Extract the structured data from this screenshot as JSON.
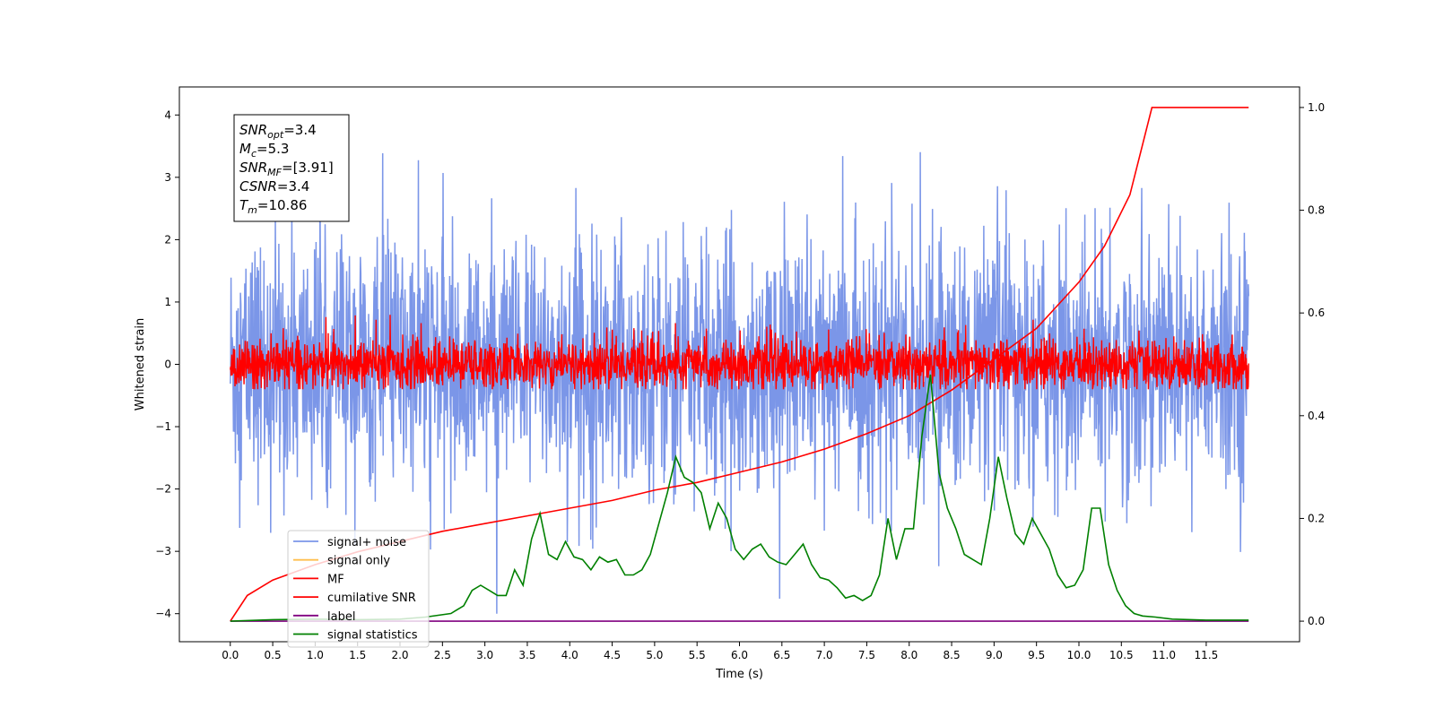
{
  "chart_data": {
    "type": "line",
    "xlabel": "Time (s)",
    "ylabel": "Whitened strain",
    "xlim": [
      -0.6,
      12.6
    ],
    "ylim": [
      -4.45,
      4.45
    ],
    "y2lim": [
      -0.04,
      1.04
    ],
    "x_ticks": [
      "0.0",
      "0.5",
      "1.0",
      "1.5",
      "2.0",
      "2.5",
      "3.0",
      "3.5",
      "4.0",
      "4.5",
      "5.0",
      "5.5",
      "6.0",
      "6.5",
      "7.0",
      "7.5",
      "8.0",
      "8.5",
      "9.0",
      "9.5",
      "10.0",
      "10.5",
      "11.0",
      "11.5"
    ],
    "y_ticks": [
      "4",
      "3",
      "2",
      "1",
      "0",
      "−1",
      "−2",
      "−3",
      "−4"
    ],
    "y_tick_values": [
      4,
      3,
      2,
      1,
      0,
      -1,
      -2,
      -3,
      -4
    ],
    "y2_ticks": [
      "1.0",
      "0.8",
      "0.6",
      "0.4",
      "0.2",
      "0.0"
    ],
    "y2_tick_values": [
      1.0,
      0.8,
      0.6,
      0.4,
      0.2,
      0.0
    ],
    "annotation": {
      "lines": [
        {
          "base": "SNR",
          "sub": "opt",
          "value": "=3.4"
        },
        {
          "base": "M",
          "sub": "c",
          "value": "=5.3"
        },
        {
          "base": "SNR",
          "sub": "MF",
          "value": "=[3.91]"
        },
        {
          "base": "CSNR",
          "sub": "",
          "value": "=3.4"
        },
        {
          "base": "T",
          "sub": "m",
          "value": "=10.86"
        }
      ]
    },
    "legend_position": "lower-left",
    "series": [
      {
        "name": "signal+ noise",
        "color": "#7b96e8",
        "axis": "left",
        "x_range": [
          0,
          12
        ],
        "approx_std": 1.0,
        "approx_range": [
          -4.0,
          4.0
        ]
      },
      {
        "name": "signal only",
        "color": "#ffbf4d",
        "axis": "left",
        "x_range": [
          0,
          12
        ],
        "values": []
      },
      {
        "name": "MF",
        "color": "#ff0000",
        "axis": "left",
        "x_range": [
          0,
          12
        ],
        "approx_std": 0.2,
        "approx_range": [
          -0.4,
          1.0
        ]
      },
      {
        "name": "cumilative SNR",
        "color": "#ff0000",
        "axis": "right",
        "x": [
          0,
          0.2,
          0.5,
          1,
          1.5,
          2,
          2.5,
          3,
          3.5,
          4,
          4.5,
          5,
          5.5,
          6,
          6.5,
          7,
          7.5,
          8,
          8.5,
          9,
          9.5,
          10,
          10.3,
          10.6,
          10.86,
          11,
          11.5,
          12
        ],
        "values": [
          0.0,
          0.05,
          0.08,
          0.11,
          0.135,
          0.155,
          0.175,
          0.19,
          0.205,
          0.22,
          0.235,
          0.255,
          0.27,
          0.29,
          0.31,
          0.335,
          0.365,
          0.4,
          0.45,
          0.51,
          0.57,
          0.66,
          0.73,
          0.83,
          1.0,
          1.0,
          1.0,
          1.0
        ]
      },
      {
        "name": "label",
        "color": "#800080",
        "axis": "right",
        "x": [
          0,
          12
        ],
        "values": [
          0.0,
          0.0
        ]
      },
      {
        "name": "signal statistics",
        "color": "#008000",
        "axis": "right",
        "x": [
          0.0,
          0.5,
          1.0,
          1.5,
          2.0,
          2.3,
          2.6,
          2.75,
          2.85,
          2.95,
          3.05,
          3.15,
          3.25,
          3.35,
          3.45,
          3.55,
          3.65,
          3.75,
          3.85,
          3.95,
          4.05,
          4.15,
          4.25,
          4.35,
          4.45,
          4.55,
          4.65,
          4.75,
          4.85,
          4.95,
          5.05,
          5.15,
          5.25,
          5.35,
          5.45,
          5.55,
          5.65,
          5.75,
          5.85,
          5.95,
          6.05,
          6.15,
          6.25,
          6.35,
          6.45,
          6.55,
          6.65,
          6.75,
          6.85,
          6.95,
          7.05,
          7.15,
          7.25,
          7.35,
          7.45,
          7.55,
          7.65,
          7.75,
          7.85,
          7.95,
          8.05,
          8.15,
          8.25,
          8.35,
          8.45,
          8.55,
          8.65,
          8.75,
          8.85,
          8.95,
          9.05,
          9.15,
          9.25,
          9.35,
          9.45,
          9.55,
          9.65,
          9.75,
          9.85,
          9.95,
          10.05,
          10.15,
          10.25,
          10.35,
          10.45,
          10.55,
          10.65,
          10.75,
          10.9,
          11.1,
          11.5,
          12.0
        ],
        "values": [
          0.0,
          0.003,
          0.004,
          0.003,
          0.004,
          0.008,
          0.015,
          0.03,
          0.06,
          0.07,
          0.06,
          0.05,
          0.05,
          0.1,
          0.07,
          0.16,
          0.21,
          0.13,
          0.12,
          0.155,
          0.125,
          0.12,
          0.1,
          0.125,
          0.115,
          0.12,
          0.09,
          0.09,
          0.1,
          0.13,
          0.19,
          0.25,
          0.32,
          0.28,
          0.27,
          0.25,
          0.18,
          0.23,
          0.2,
          0.14,
          0.12,
          0.14,
          0.15,
          0.125,
          0.115,
          0.11,
          0.13,
          0.15,
          0.11,
          0.085,
          0.08,
          0.065,
          0.045,
          0.05,
          0.04,
          0.05,
          0.09,
          0.2,
          0.12,
          0.18,
          0.18,
          0.36,
          0.48,
          0.29,
          0.22,
          0.18,
          0.13,
          0.12,
          0.11,
          0.2,
          0.32,
          0.24,
          0.17,
          0.15,
          0.2,
          0.17,
          0.14,
          0.09,
          0.065,
          0.07,
          0.1,
          0.22,
          0.22,
          0.11,
          0.06,
          0.03,
          0.015,
          0.01,
          0.008,
          0.004,
          0.002,
          0.002
        ]
      }
    ]
  }
}
